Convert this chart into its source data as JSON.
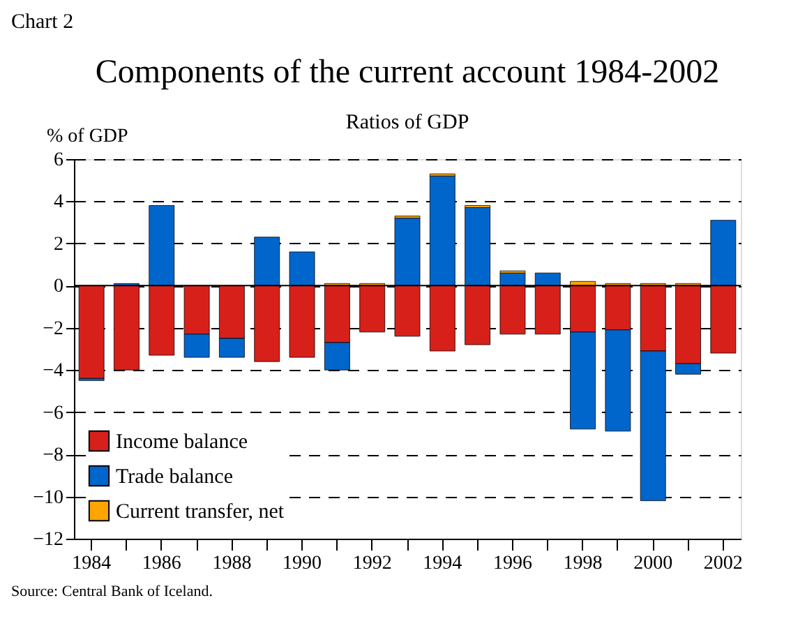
{
  "chart_data": {
    "type": "bar",
    "stacked": true,
    "title": "Components of the current account 1984-2002",
    "subtitle": "Ratios of GDP",
    "ylabel": "% of GDP",
    "categories": [
      "1984",
      null,
      "1986",
      null,
      "1988",
      null,
      "1990",
      null,
      "1992",
      null,
      "1994",
      null,
      "1996",
      null,
      "1998",
      null,
      "2000",
      null,
      "2002"
    ],
    "series": [
      {
        "name": "Income balance",
        "color": "#d7201a",
        "values": [
          -4.4,
          -4.0,
          -3.3,
          -2.3,
          -2.5,
          -3.6,
          -3.4,
          -2.7,
          -2.2,
          -2.4,
          -3.1,
          -2.8,
          -2.3,
          -2.3,
          -2.2,
          -2.1,
          -3.1,
          -3.7,
          -3.2
        ]
      },
      {
        "name": "Trade balance",
        "color": "#0066cc",
        "values": [
          -0.1,
          0.1,
          3.8,
          -1.1,
          -0.9,
          2.3,
          1.6,
          -1.3,
          0.0,
          3.2,
          5.2,
          3.7,
          0.6,
          0.6,
          -4.6,
          -4.8,
          -7.1,
          -0.5,
          3.1
        ]
      },
      {
        "name": "Current transfer, net",
        "color": "#ffa500",
        "values": [
          0.0,
          0.0,
          0.0,
          0.0,
          0.0,
          0.0,
          0.0,
          0.1,
          0.1,
          0.1,
          0.1,
          0.1,
          0.1,
          0.0,
          0.2,
          0.1,
          0.1,
          0.1,
          0.0
        ]
      }
    ],
    "ylim": [
      -12,
      6
    ],
    "yticks": [
      -12,
      -10,
      -8,
      -6,
      -4,
      -2,
      0,
      2,
      4,
      6
    ],
    "grid": "y",
    "legend": "bottom left",
    "ref_lines": [
      {
        "axis": "y",
        "value": 0,
        "color": "#000000",
        "line_style": "solid"
      }
    ],
    "annotations": [
      "Chart 2",
      "Source: Central Bank of Iceland."
    ]
  }
}
